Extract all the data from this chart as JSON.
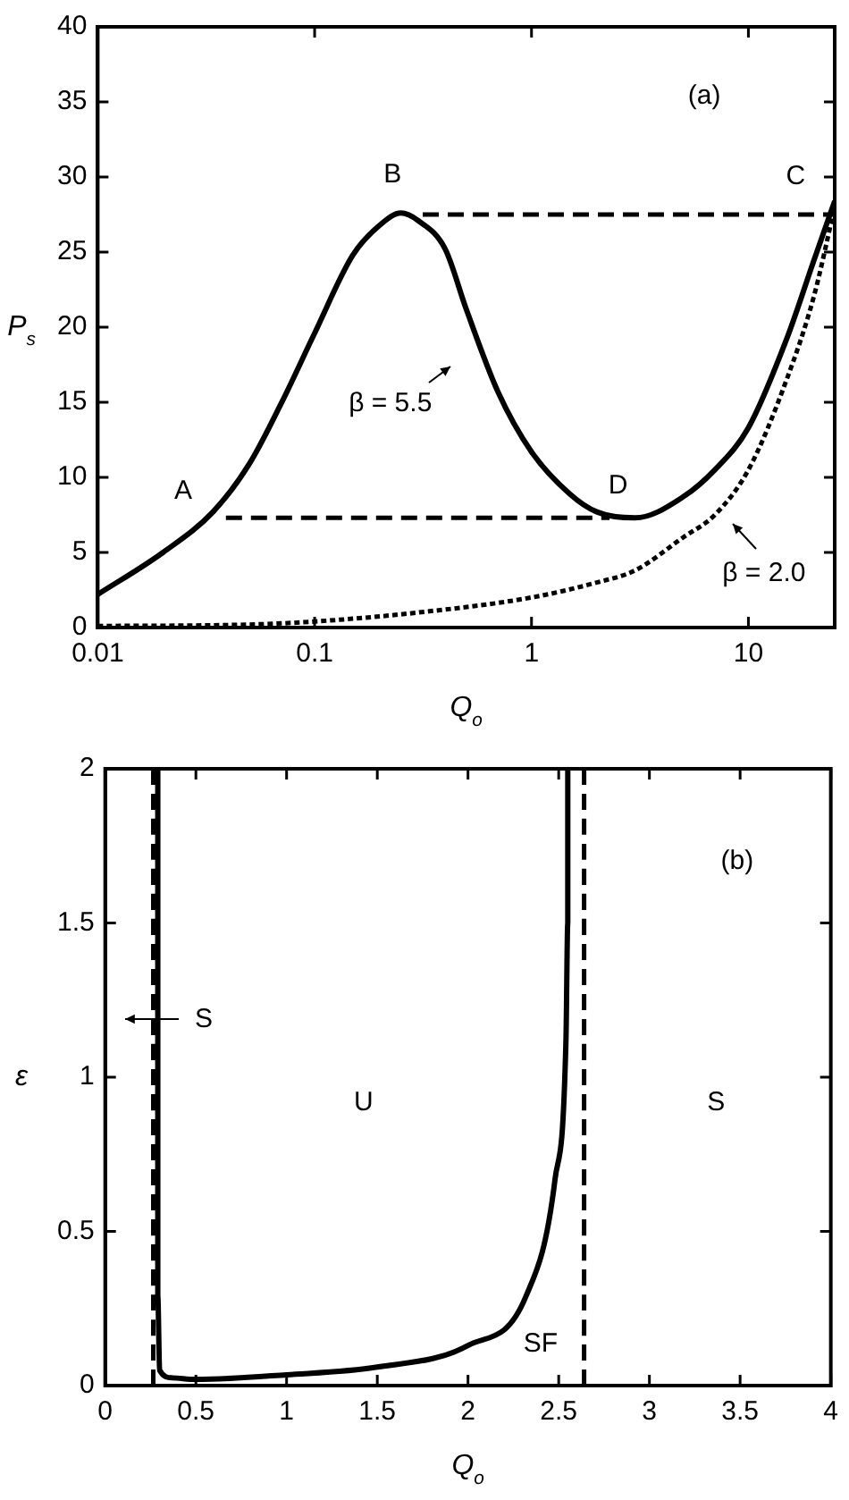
{
  "chart_data": [
    {
      "type": "line",
      "xlabel": "Q$_{o}$",
      "ylabel": "P$_{s}$",
      "log": "x",
      "xlim": [
        0.01,
        25
      ],
      "xticks": [
        0.01,
        0.1,
        1,
        10
      ],
      "ylim": [
        0,
        40
      ],
      "yticks": [
        0,
        5,
        10,
        15,
        20,
        25,
        30,
        35,
        40
      ],
      "grid": false,
      "legend": false,
      "marker": "none",
      "annotations": [
        "(a)",
        "A",
        "B",
        "C",
        "D",
        "β = 5.5",
        "β = 2.0"
      ],
      "series": [
        {
          "color": "#000000",
          "line_style": "solid",
          "x": [
            0.01,
            0.02,
            0.034,
            0.05,
            0.07,
            0.1,
            0.15,
            0.2,
            0.25,
            0.3,
            0.4,
            0.5,
            0.7,
            1,
            1.5,
            2,
            3,
            5,
            7,
            10,
            15,
            20,
            25
          ],
          "values": [
            2.2,
            5,
            7.7,
            10.9,
            14.9,
            19.6,
            24.8,
            26.8,
            27.6,
            27.1,
            25.2,
            21.2,
            15.7,
            11.7,
            8.9,
            7.7,
            7.3,
            8.7,
            10.5,
            13.3,
            19.2,
            24.4,
            28.4
          ]
        },
        {
          "color": "#000000",
          "line_style": "dotted",
          "x": [
            0.01,
            0.05,
            0.1,
            0.3,
            1,
            2,
            3,
            5,
            7,
            10,
            15,
            20,
            25
          ],
          "values": [
            0.1,
            0.2,
            0.4,
            1,
            2,
            3,
            3.8,
            6,
            7.5,
            10.5,
            16.5,
            22,
            28
          ]
        },
        {
          "color": "#000000",
          "line_style": "dashed",
          "x": [
            0.315,
            25
          ],
          "values": [
            27.5,
            27.5
          ]
        },
        {
          "color": "#000000",
          "line_style": "dashed",
          "x": [
            0.039,
            2.29
          ],
          "values": [
            7.3,
            7.3
          ]
        }
      ]
    },
    {
      "type": "line",
      "xlabel": "Q$_{o}$",
      "ylabel": "ε",
      "xlim": [
        0,
        4
      ],
      "xticks": [
        0,
        0.5,
        1,
        1.5,
        2,
        2.5,
        3,
        3.5,
        4
      ],
      "ylim": [
        0,
        2
      ],
      "yticks": [
        0,
        0.5,
        1,
        1.5,
        2
      ],
      "grid": false,
      "legend": false,
      "marker": "none",
      "annotations": [
        "(b)",
        "S",
        "U",
        "S",
        "SF"
      ],
      "series": [
        {
          "color": "#000000",
          "line_style": "solid",
          "x": [
            0.29,
            0.29,
            0.3,
            0.37,
            0.5,
            1,
            1.5,
            2,
            2.32,
            2.48,
            2.54,
            2.55,
            2.55
          ],
          "values": [
            2,
            0.29,
            0.05,
            0.025,
            0.02,
            0.035,
            0.06,
            0.13,
            0.29,
            0.67,
            1.12,
            1.5,
            2
          ]
        },
        {
          "color": "#000000",
          "line_style": "dashed",
          "x": [
            0.265,
            0.265
          ],
          "values": [
            0,
            2
          ]
        },
        {
          "color": "#000000",
          "line_style": "dashed",
          "x": [
            2.64,
            2.64
          ],
          "values": [
            0,
            2
          ]
        }
      ]
    }
  ]
}
